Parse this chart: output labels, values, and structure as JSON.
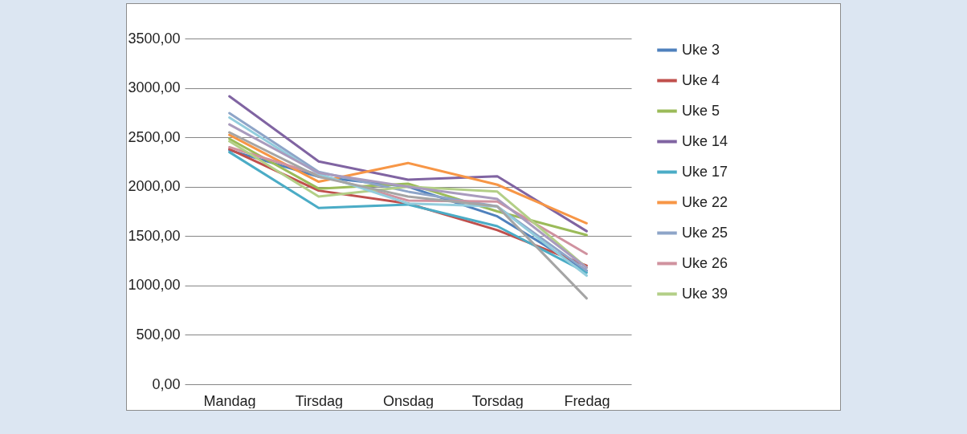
{
  "chart_data": {
    "type": "line",
    "categories": [
      "Mandag",
      "Tirsdag",
      "Onsdag",
      "Torsdag",
      "Fredag"
    ],
    "ylim": [
      0,
      3500
    ],
    "yticks": [
      {
        "value": 0,
        "label": "0,00"
      },
      {
        "value": 500,
        "label": "500,00"
      },
      {
        "value": 1000,
        "label": "1000,00"
      },
      {
        "value": 1500,
        "label": "1500,00"
      },
      {
        "value": 2000,
        "label": "2000,00"
      },
      {
        "value": 2500,
        "label": "2500,00"
      },
      {
        "value": 3000,
        "label": "3000,00"
      },
      {
        "value": 3500,
        "label": "3500,00"
      }
    ],
    "grid": "y",
    "legend": "right",
    "marker": "none",
    "line_style": "solid",
    "series": [
      {
        "name": "Uke 3",
        "color": "#4f81bd",
        "values": [
          2370,
          2100,
          2000,
          1700,
          1150
        ]
      },
      {
        "name": "Uke 4",
        "color": "#c0504d",
        "values": [
          2380,
          1960,
          1830,
          1560,
          1200
        ]
      },
      {
        "name": "Uke 5",
        "color": "#9bbb59",
        "values": [
          2485,
          1980,
          2030,
          1750,
          1510
        ]
      },
      {
        "name": "Uke 14",
        "color": "#8064a2",
        "values": [
          2915,
          2255,
          2070,
          2105,
          1550
        ]
      },
      {
        "name": "Uke 17",
        "color": "#4bacc6",
        "values": [
          2350,
          1785,
          1820,
          1600,
          1130
        ]
      },
      {
        "name": "Uke 22",
        "color": "#f79646",
        "values": [
          2525,
          2050,
          2240,
          2020,
          1630
        ]
      },
      {
        "name": "Uke 25",
        "color": "#8ea5c8",
        "values": [
          2745,
          2150,
          1950,
          1800,
          1150
        ]
      },
      {
        "name": "Uke 26",
        "color": "#d0929f",
        "values": [
          2400,
          2120,
          1860,
          1850,
          1320
        ]
      },
      {
        "name": "Uke 39",
        "color": "#b3cf87",
        "values": [
          2460,
          1900,
          2000,
          1950,
          1180
        ]
      },
      {
        "color": "#93cddd",
        "values": [
          2700,
          2130,
          1830,
          1800,
          1100
        ]
      },
      {
        "color": "#a99bbd",
        "values": [
          2630,
          2140,
          2000,
          1875,
          1180
        ]
      },
      {
        "color": "#a5a5a5",
        "values": [
          2550,
          2100,
          1900,
          1800,
          870
        ]
      }
    ]
  }
}
